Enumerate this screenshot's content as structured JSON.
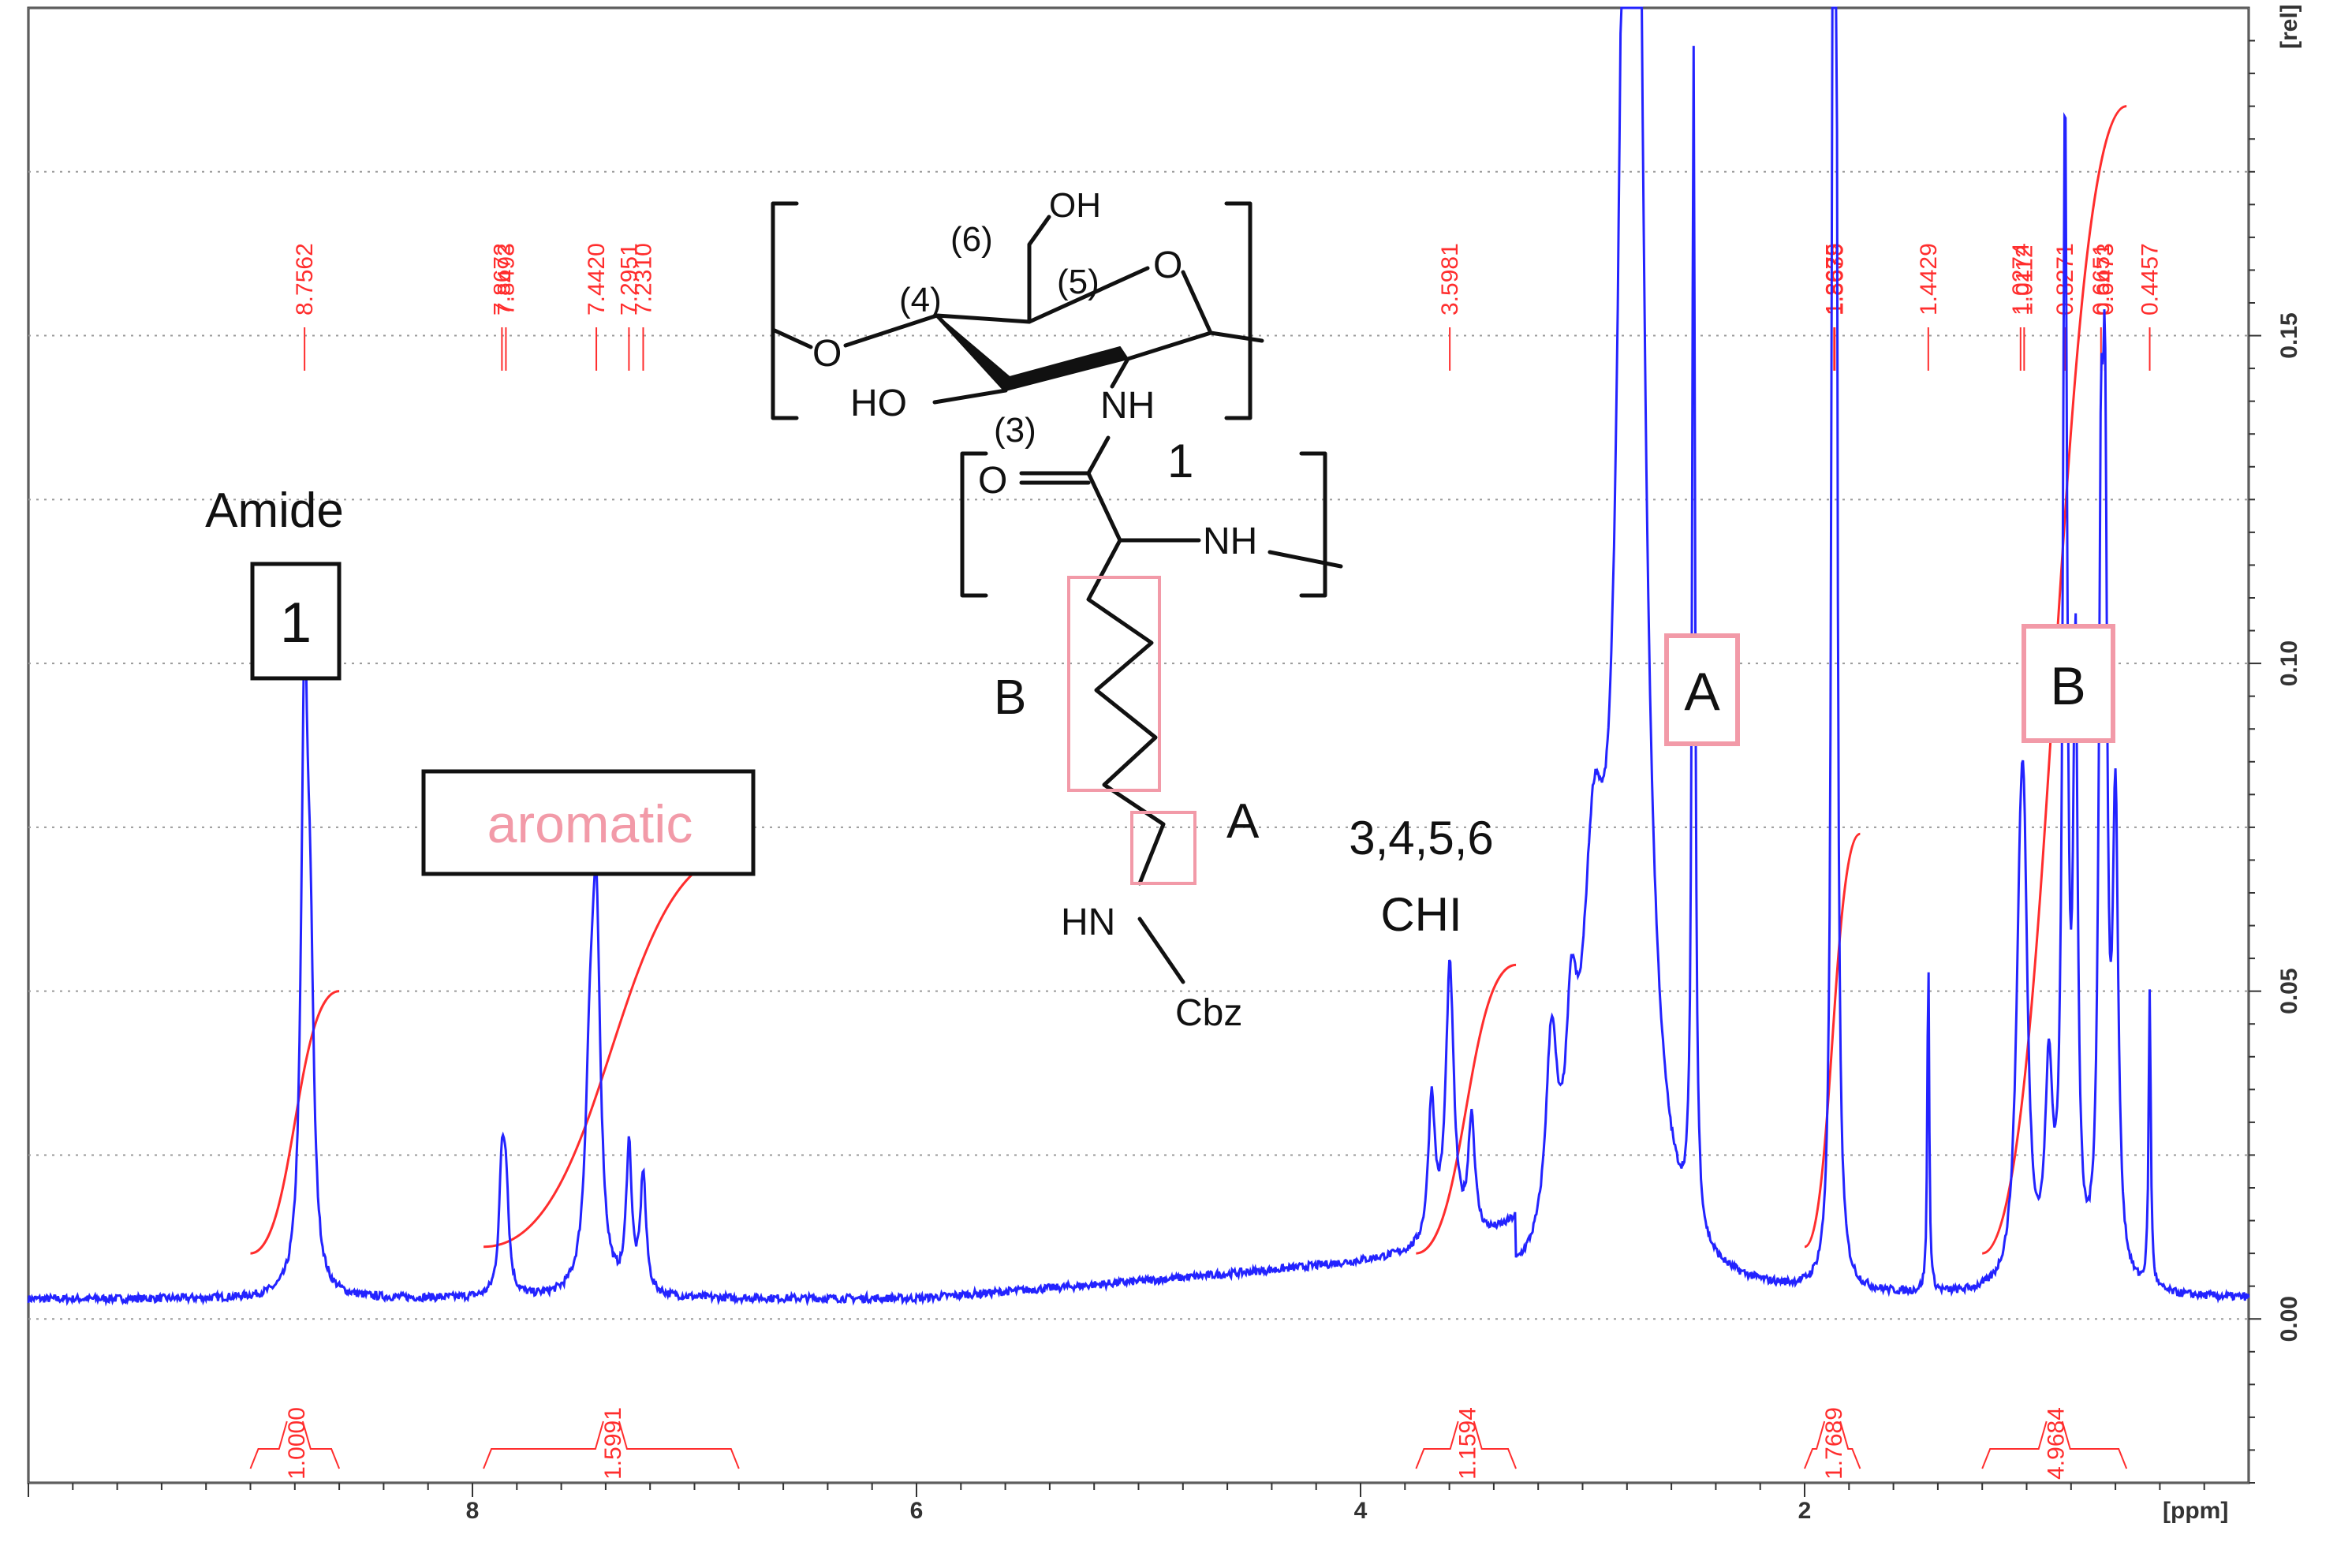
{
  "chart_data": {
    "type": "line",
    "title": "",
    "xlabel": "[ppm]",
    "ylabel": "[rel]",
    "xlim": [
      10.0,
      0.0
    ],
    "ylim": [
      -0.025,
      0.2
    ],
    "x_ticks": [
      "8",
      "6",
      "4",
      "2"
    ],
    "x_tick_values": [
      8,
      6,
      4,
      2
    ],
    "y_ticks": [
      "0.00",
      "0.05",
      "0.10",
      "0.15"
    ],
    "y_tick_values": [
      0.0,
      0.05,
      0.1,
      0.15
    ],
    "grid": "horizontal dotted",
    "series_color": "#2323ff",
    "annotation_color": "#ff2d2d",
    "baseline": 0.003,
    "spectrum_peaks": [
      {
        "x": 8.7562,
        "height": 0.09,
        "width": 0.018
      },
      {
        "x": 8.73,
        "height": 0.04,
        "width": 0.018
      },
      {
        "x": 7.8672,
        "height": 0.018,
        "width": 0.015
      },
      {
        "x": 7.8493,
        "height": 0.015,
        "width": 0.015
      },
      {
        "x": 7.442,
        "height": 0.052,
        "width": 0.022
      },
      {
        "x": 7.47,
        "height": 0.03,
        "width": 0.025
      },
      {
        "x": 7.2951,
        "height": 0.022,
        "width": 0.015
      },
      {
        "x": 7.231,
        "height": 0.018,
        "width": 0.015
      },
      {
        "x": 3.68,
        "height": 0.022,
        "width": 0.018
      },
      {
        "x": 3.5981,
        "height": 0.042,
        "width": 0.022
      },
      {
        "x": 3.5,
        "height": 0.018,
        "width": 0.018
      },
      {
        "x": 3.14,
        "height": 0.03,
        "width": 0.03
      },
      {
        "x": 3.05,
        "height": 0.025,
        "width": 0.03
      },
      {
        "x": 2.95,
        "height": 0.05,
        "width": 0.06
      },
      {
        "x": 2.78,
        "height": 0.4,
        "width": 0.045
      },
      {
        "x": 2.5,
        "height": 0.18,
        "width": 0.008
      },
      {
        "x": 1.8675,
        "height": 0.4,
        "width": 0.006
      },
      {
        "x": 1.8639,
        "height": 0.4,
        "width": 0.006
      },
      {
        "x": 1.4429,
        "height": 0.052,
        "width": 0.005
      },
      {
        "x": 1.0274,
        "height": 0.05,
        "width": 0.025
      },
      {
        "x": 1.0112,
        "height": 0.04,
        "width": 0.02
      },
      {
        "x": 0.9,
        "height": 0.03,
        "width": 0.02
      },
      {
        "x": 0.8271,
        "height": 0.175,
        "width": 0.012
      },
      {
        "x": 0.78,
        "height": 0.09,
        "width": 0.012
      },
      {
        "x": 0.6651,
        "height": 0.1,
        "width": 0.012
      },
      {
        "x": 0.6473,
        "height": 0.11,
        "width": 0.012
      },
      {
        "x": 0.6,
        "height": 0.07,
        "width": 0.015
      },
      {
        "x": 0.4457,
        "height": 0.045,
        "width": 0.006
      }
    ],
    "peak_labels": [
      "8.7562",
      "7.8672",
      "7.8493",
      "7.4420",
      "7.2951",
      "7.2310",
      "3.5981",
      "1.8675",
      "1.8639",
      "1.4429",
      "1.0274",
      "1.0112",
      "0.8271",
      "0.6651",
      "0.6473",
      "0.4457"
    ],
    "peak_label_positions": [
      8.7562,
      7.8672,
      7.8493,
      7.442,
      7.2951,
      7.231,
      3.5981,
      1.8675,
      1.8639,
      1.4429,
      1.0274,
      1.0112,
      0.8271,
      0.6651,
      0.6473,
      0.4457
    ],
    "integrals": [
      {
        "label": "1.0000",
        "from": 9.0,
        "to": 8.6,
        "value_start": 0.01,
        "value_end": 0.05
      },
      {
        "label": "1.5991",
        "from": 7.95,
        "to": 6.8,
        "value_start": 0.011,
        "value_end": 0.071
      },
      {
        "label": "1.1594",
        "from": 3.75,
        "to": 3.3,
        "value_start": 0.01,
        "value_end": 0.054
      },
      {
        "label": "1.7689",
        "from": 2.0,
        "to": 1.75,
        "value_start": 0.011,
        "value_end": 0.074
      },
      {
        "label": "4.9684",
        "from": 1.2,
        "to": 0.55,
        "value_start": 0.01,
        "value_end": 0.185
      }
    ]
  },
  "annotations": {
    "amide_title": "Amide",
    "amide_box": "1",
    "aromatic": "aromatic",
    "chi_line1": "3,4,5,6",
    "chi_line2": "CHI",
    "label_A": "A",
    "label_B": "B"
  },
  "structure": {
    "oh_top": "OH",
    "c6": "(6)",
    "c5": "(5)",
    "c4": "(4)",
    "c3": "(3)",
    "ring_o": "O",
    "ho": "HO",
    "nh_ring": "NH",
    "glycosidic_o": "O",
    "carbonyl_o": "O",
    "nh_chain": "NH",
    "hn": "HN",
    "cbz": "Cbz",
    "unit_label": "1",
    "B": "B",
    "A": "A"
  }
}
